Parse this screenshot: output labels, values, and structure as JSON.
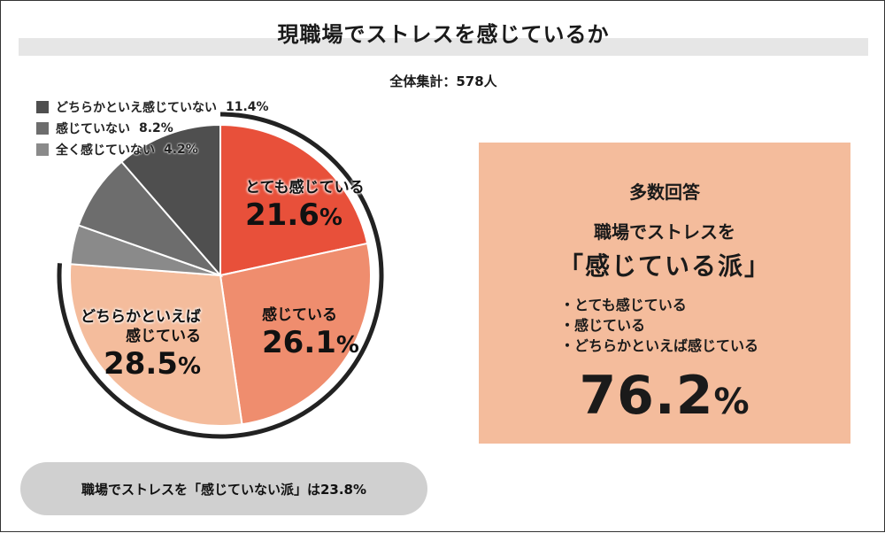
{
  "header": {
    "title": "現職場でストレスを感じているか",
    "subtitle": "全体集計：578人"
  },
  "chart_data": {
    "type": "pie",
    "title": "現職場でストレスを感じているか",
    "unit": "%",
    "start": "12 o'clock, clockwise",
    "categories": [
      "とても感じている",
      "感じている",
      "どちらかといえば感じている",
      "全く感じていない",
      "感じていない",
      "どちらかといえ感じていない"
    ],
    "values": [
      21.6,
      26.1,
      28.5,
      4.2,
      8.2,
      11.4
    ],
    "colors": [
      "#e8503a",
      "#ef8d6e",
      "#f4bc9c",
      "#8a8a8a",
      "#6d6d6d",
      "#4f4f4f"
    ],
    "slice_labels": {
      "very": {
        "text": "とても感じている",
        "value": "21.6",
        "unit": "%"
      },
      "feel": {
        "text": "感じている",
        "value": "26.1",
        "unit": "%"
      },
      "somewhat_line1": "どちらかといえば",
      "somewhat_line2": "感じている",
      "somewhat_value": "28.5",
      "somewhat_unit": "%"
    },
    "legend": [
      {
        "label": "どちらかといえ感じていない",
        "value": "11.4%",
        "color": "#4f4f4f"
      },
      {
        "label": "感じていない",
        "value": "8.2%",
        "color": "#6d6d6d"
      },
      {
        "label": "全く感じていない",
        "value": "4.2%",
        "color": "#8a8a8a"
      }
    ],
    "legend_position": "top-left"
  },
  "callout": {
    "heading": "多数回答",
    "line1": "職場でストレスを",
    "line2": "「感じている派」",
    "items": [
      "・とても感じている",
      "・感じている",
      "・どちらかといえば感じている"
    ],
    "total_value": "76.2",
    "total_unit": "%",
    "color": "#f4bc9c"
  },
  "footer": {
    "text": "職場でストレスを「感じていない派」は23.8%"
  }
}
